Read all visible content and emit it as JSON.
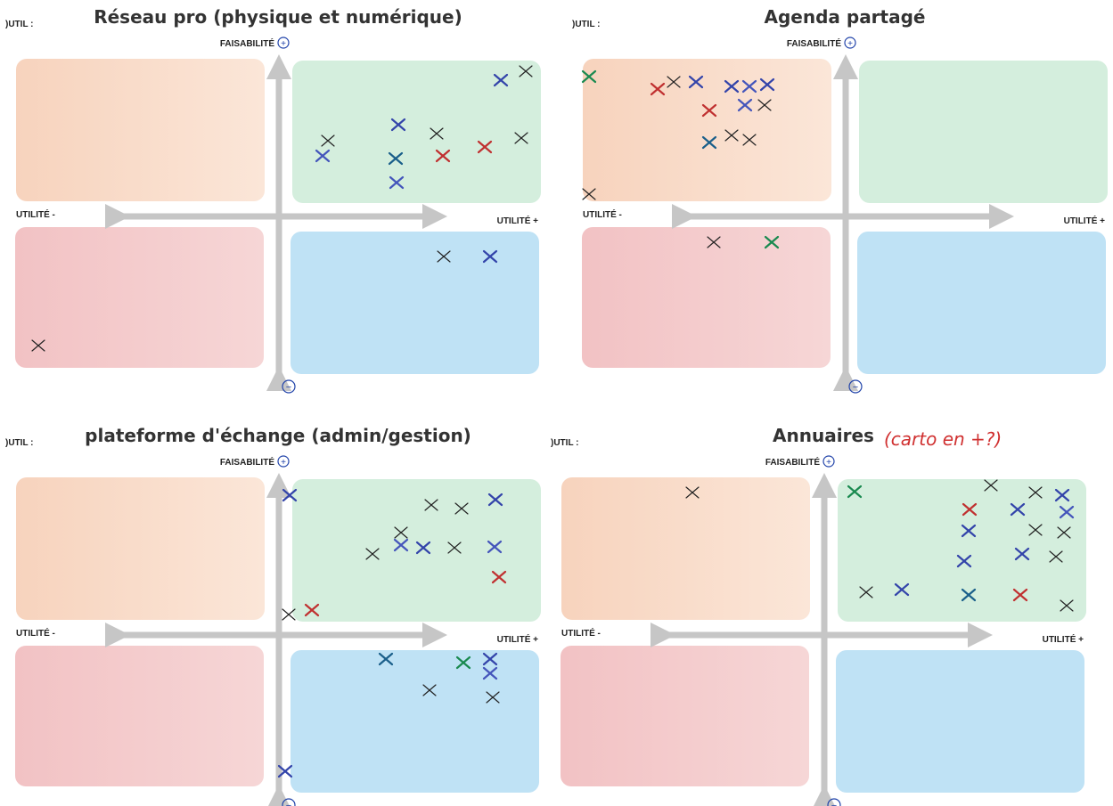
{
  "pages": [
    {
      "outil": ")UTIL :",
      "title": "Réseau pro (physique et numérique)",
      "y_label": "FAISABILITÉ",
      "plus": "+",
      "minus": "−",
      "x_minus": "UTILITÉ -",
      "x_plus": "UTILITÉ +"
    },
    {
      "outil": ")UTIL :",
      "title": "Agenda partagé",
      "y_label": "FAISABILITÉ",
      "plus": "+",
      "minus": "−",
      "x_minus": "UTILITÉ -",
      "x_plus": "UTILITÉ +"
    },
    {
      "outil": ")UTIL :",
      "title": "plateforme d'échange (admin/gestion)",
      "y_label": "FAISABILITÉ",
      "plus": "+",
      "minus": "−",
      "x_minus": "UTILITÉ -",
      "x_plus": "UTILITÉ +"
    },
    {
      "outil": ")UTIL :",
      "title": "Annuaires",
      "annotation": "(carto en +?)",
      "y_label": "FAISABILITÉ",
      "plus": "+",
      "minus": "−",
      "x_minus": "UTILITÉ -",
      "x_plus": "UTILITÉ +"
    }
  ]
}
